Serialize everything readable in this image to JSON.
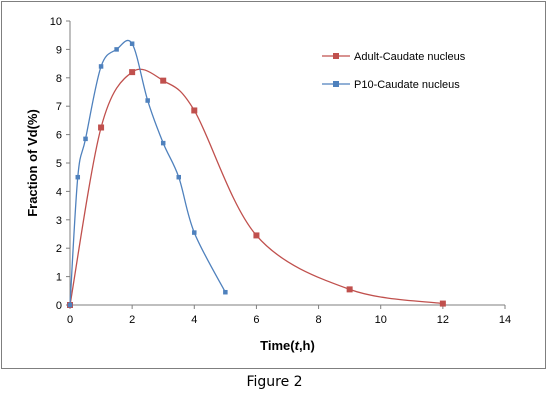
{
  "figure_caption": "Figure 2",
  "chart_data": {
    "type": "line",
    "xlabel_prefix": "Time(",
    "xlabel_italic": "t",
    "xlabel_suffix": ",h)",
    "ylabel": "Fraction of Vd(%)",
    "xlim": [
      0,
      14
    ],
    "ylim": [
      0,
      10
    ],
    "x_ticks": [
      0,
      2,
      4,
      6,
      8,
      10,
      12,
      14
    ],
    "y_ticks": [
      0,
      1,
      2,
      3,
      4,
      5,
      6,
      7,
      8,
      9,
      10
    ],
    "grid": false,
    "legend_position": "top-right",
    "series": [
      {
        "name": "Adult-Caudate nucleus",
        "color": "#c0504d",
        "marker": "square",
        "x": [
          0,
          1,
          2,
          3,
          4,
          6,
          9,
          12
        ],
        "y": [
          0,
          6.25,
          8.2,
          7.9,
          6.85,
          2.45,
          0.55,
          0.05
        ]
      },
      {
        "name": "P10-Caudate nucleus",
        "color": "#4f81bd",
        "marker": "square",
        "x": [
          0,
          0.25,
          0.5,
          1,
          1.5,
          2,
          2.5,
          3,
          3.5,
          4,
          5
        ],
        "y": [
          0,
          4.5,
          5.85,
          8.4,
          9.0,
          9.2,
          7.2,
          5.7,
          4.5,
          2.55,
          0.45
        ]
      }
    ]
  }
}
